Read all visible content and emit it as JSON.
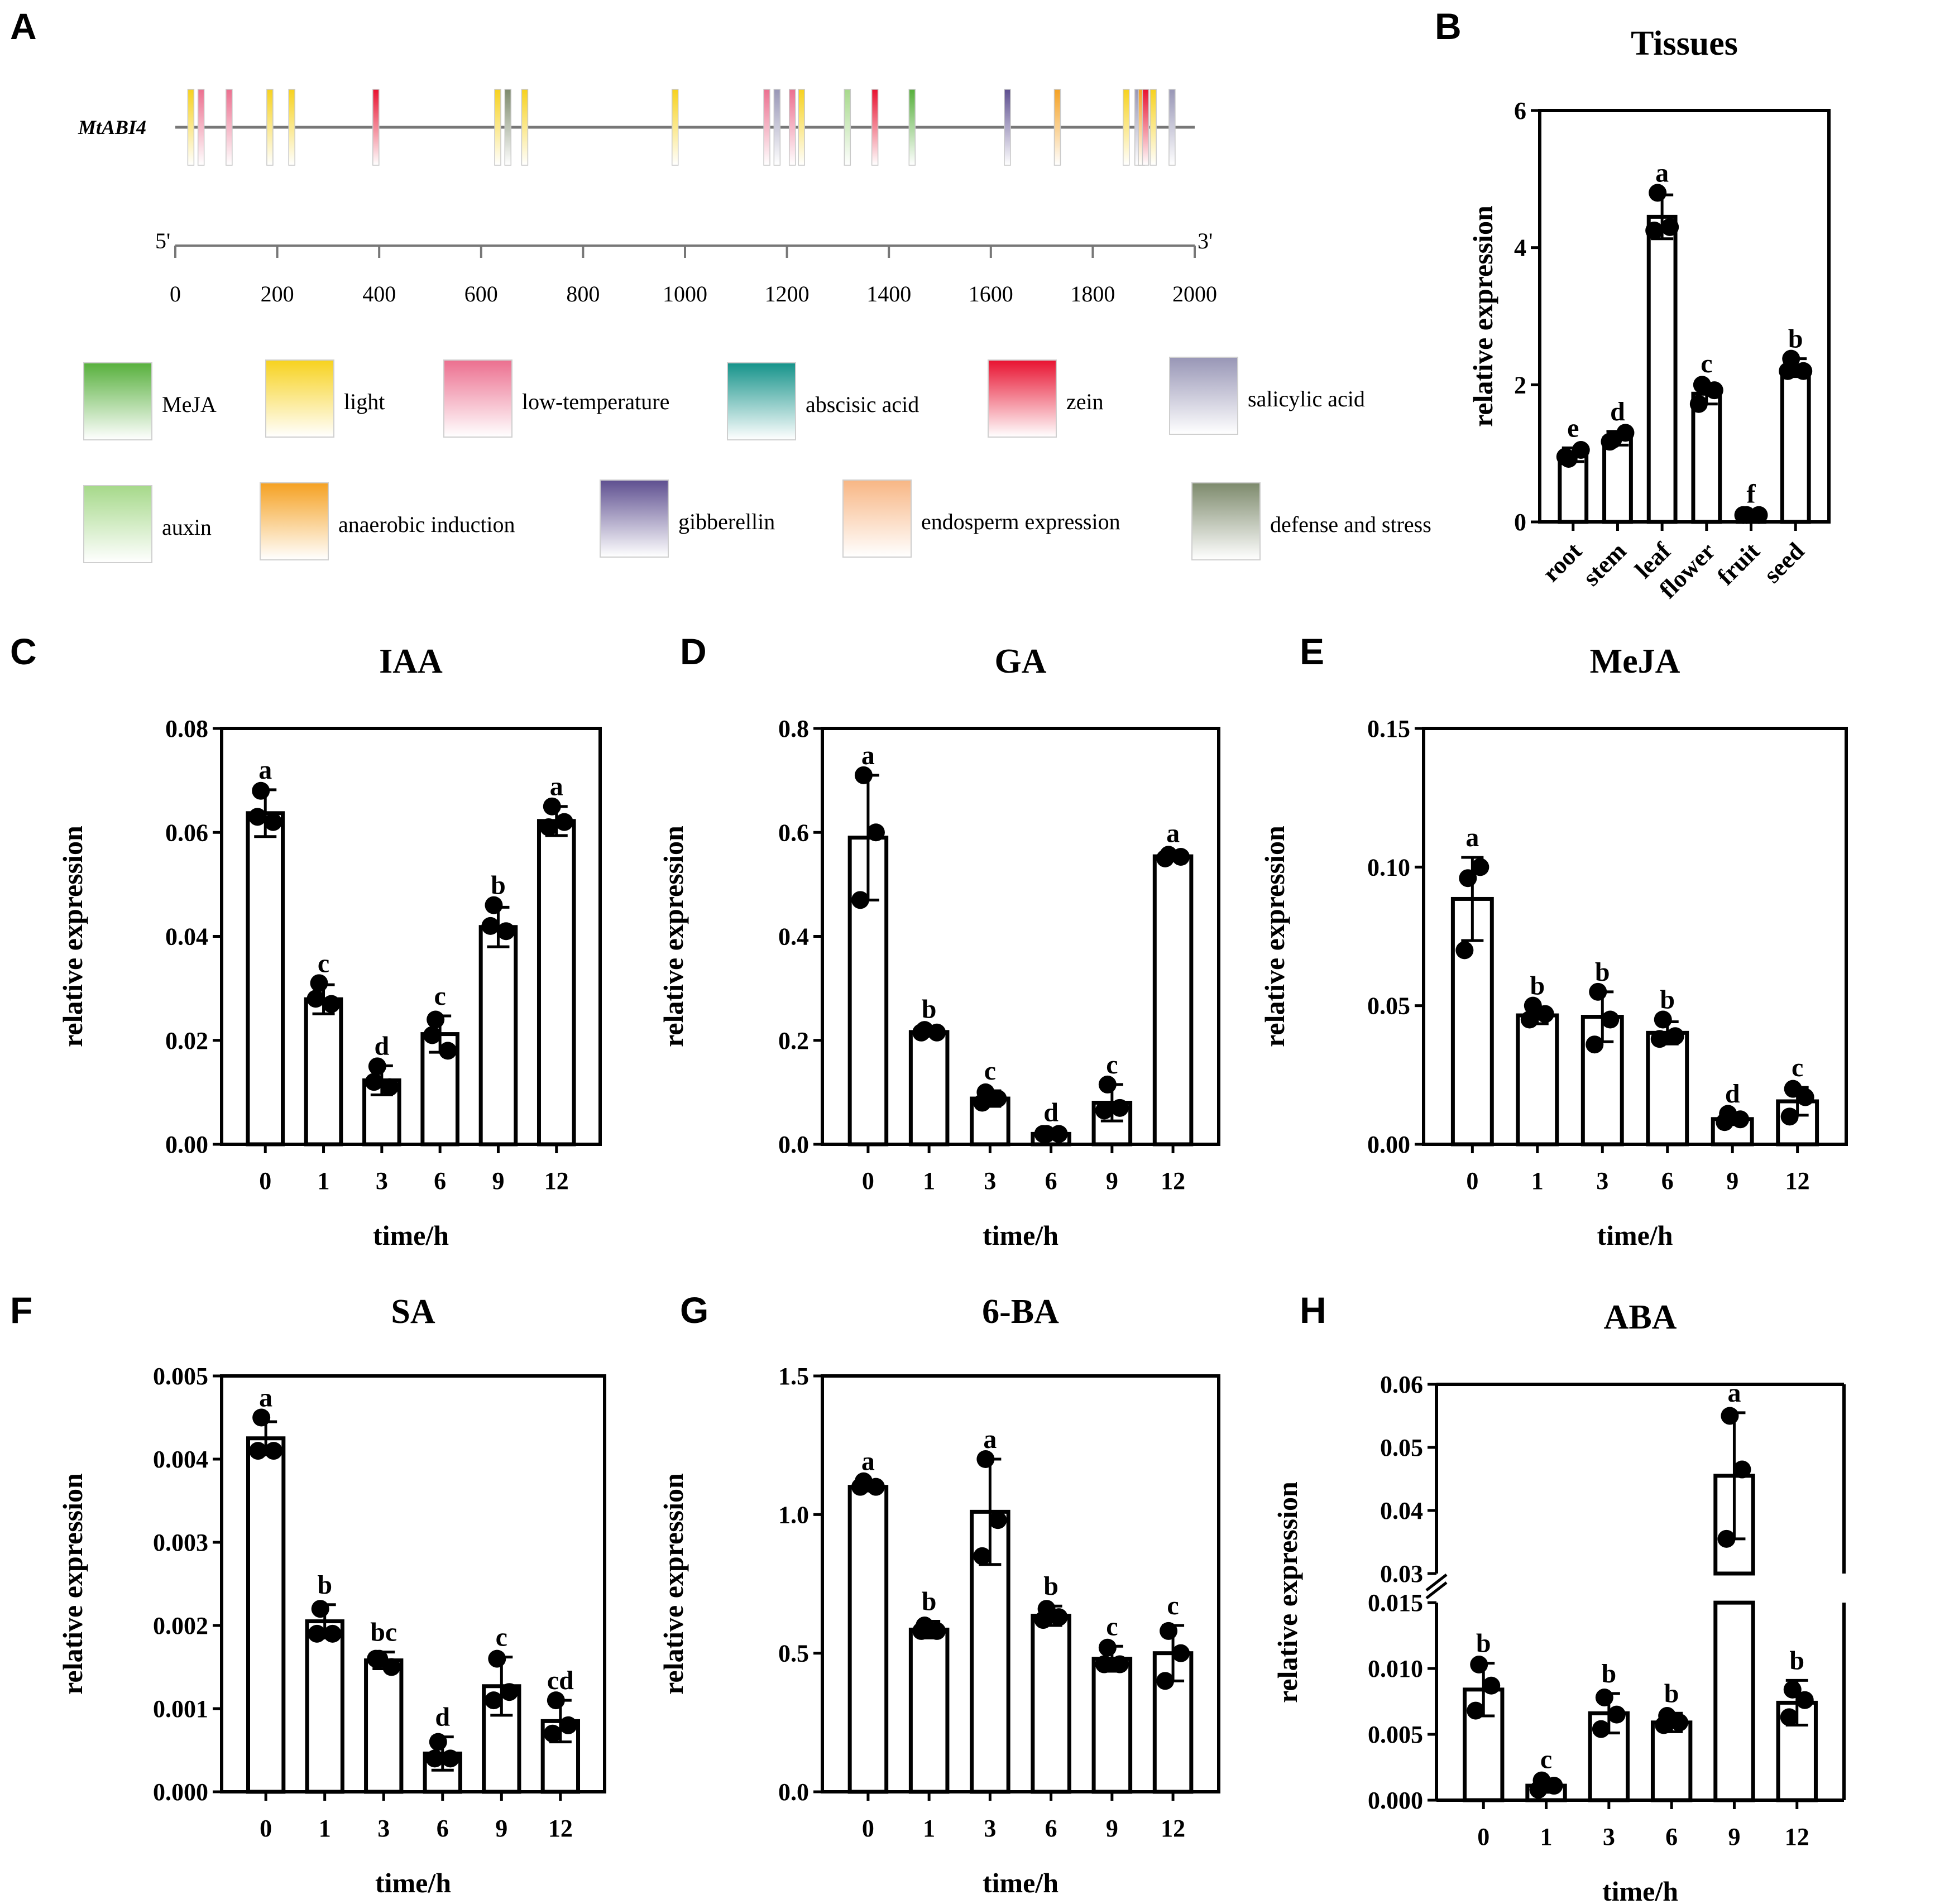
{
  "panels": {
    "A": "A",
    "B": "B",
    "C": "C",
    "D": "D",
    "E": "E",
    "F": "F",
    "G": "G",
    "H": "H"
  },
  "promoter": {
    "gene": "MtABI4",
    "end5": "5'",
    "end3": "3'",
    "scale_ticks": [
      "0",
      "200",
      "400",
      "600",
      "800",
      "1000",
      "1200",
      "1400",
      "1600",
      "1800",
      "2000"
    ],
    "scale_max": 2000,
    "elements": [
      {
        "pos": 30,
        "type": "light"
      },
      {
        "pos": 50,
        "type": "low-temperature"
      },
      {
        "pos": 105,
        "type": "low-temperature"
      },
      {
        "pos": 185,
        "type": "light"
      },
      {
        "pos": 228,
        "type": "light"
      },
      {
        "pos": 393,
        "type": "zein"
      },
      {
        "pos": 632,
        "type": "light"
      },
      {
        "pos": 652,
        "type": "defense and stress"
      },
      {
        "pos": 685,
        "type": "light"
      },
      {
        "pos": 980,
        "type": "light"
      },
      {
        "pos": 1160,
        "type": "low-temperature"
      },
      {
        "pos": 1180,
        "type": "salicylic acid"
      },
      {
        "pos": 1210,
        "type": "low-temperature"
      },
      {
        "pos": 1228,
        "type": "light"
      },
      {
        "pos": 1318,
        "type": "auxin"
      },
      {
        "pos": 1372,
        "type": "zein"
      },
      {
        "pos": 1445,
        "type": "MeJA"
      },
      {
        "pos": 1632,
        "type": "gibberellin"
      },
      {
        "pos": 1730,
        "type": "anaerobic induction"
      },
      {
        "pos": 1865,
        "type": "light"
      },
      {
        "pos": 1888,
        "type": "salicylic acid"
      },
      {
        "pos": 1895,
        "type": "anaerobic induction"
      },
      {
        "pos": 1903,
        "type": "zein"
      },
      {
        "pos": 1918,
        "type": "light"
      },
      {
        "pos": 1955,
        "type": "salicylic acid"
      }
    ],
    "legend": [
      {
        "label": "MeJA",
        "color": "#57b03c"
      },
      {
        "label": "light",
        "color": "#f7d21e"
      },
      {
        "label": "low-temperature",
        "color": "#ec6f8f"
      },
      {
        "label": "abscisic acid",
        "color": "#15938a"
      },
      {
        "label": "zein",
        "color": "#e81230"
      },
      {
        "label": "salicylic acid",
        "color": "#9896b6"
      },
      {
        "label": "auxin",
        "color": "#a6d98a"
      },
      {
        "label": "anaerobic induction",
        "color": "#f5a122"
      },
      {
        "label": "gibberellin",
        "color": "#5e4f90"
      },
      {
        "label": "endosperm expression",
        "color": "#f8b684"
      },
      {
        "label": "defense and stress",
        "color": "#7d8a6c"
      }
    ]
  },
  "chart_data": [
    {
      "panel": "B",
      "type": "bar",
      "title": "Tissues",
      "xlabel": "",
      "ylabel": "relative expression",
      "categories": [
        "root",
        "stem",
        "leaf",
        "flower",
        "fruit",
        "seed"
      ],
      "values": [
        0.98,
        1.22,
        4.45,
        1.87,
        0.1,
        2.25
      ],
      "errors": [
        0.1,
        0.1,
        0.32,
        0.15,
        0.02,
        0.13
      ],
      "points": [
        [
          0.92,
          1.05,
          0.95
        ],
        [
          1.2,
          1.3,
          1.17
        ],
        [
          4.8,
          4.3,
          4.25
        ],
        [
          2.0,
          1.92,
          1.72
        ],
        [
          0.1,
          0.1,
          0.1
        ],
        [
          2.38,
          2.2,
          2.2
        ]
      ],
      "letters": [
        "e",
        "d",
        "a",
        "c",
        "f",
        "b"
      ],
      "yticks": [
        "0",
        "2",
        "4",
        "6"
      ],
      "ylim": [
        0,
        6
      ]
    },
    {
      "panel": "C",
      "type": "bar",
      "title": "IAA",
      "xlabel": "time/h",
      "ylabel": "relative expression",
      "categories": [
        "0",
        "1",
        "3",
        "6",
        "9",
        "12"
      ],
      "values": [
        0.0637,
        0.0279,
        0.0123,
        0.0212,
        0.0418,
        0.0622
      ],
      "errors": [
        0.0045,
        0.0028,
        0.0028,
        0.0035,
        0.0038,
        0.0028
      ],
      "points": [
        [
          0.068,
          0.062,
          0.063
        ],
        [
          0.031,
          0.027,
          0.028
        ],
        [
          0.015,
          0.011,
          0.012
        ],
        [
          0.024,
          0.018,
          0.021
        ],
        [
          0.046,
          0.041,
          0.042
        ],
        [
          0.065,
          0.062,
          0.061
        ]
      ],
      "letters": [
        "a",
        "c",
        "d",
        "c",
        "b",
        "a"
      ],
      "yticks": [
        "0.00",
        "0.02",
        "0.04",
        "0.06",
        "0.08"
      ],
      "ylim": [
        0,
        0.08
      ]
    },
    {
      "panel": "D",
      "type": "bar",
      "title": "GA",
      "xlabel": "time/h",
      "ylabel": "relative expression",
      "categories": [
        "0",
        "1",
        "3",
        "6",
        "9",
        "12"
      ],
      "values": [
        0.59,
        0.216,
        0.088,
        0.02,
        0.08,
        0.554
      ],
      "errors": [
        0.12,
        0.006,
        0.015,
        0.003,
        0.035,
        0.006
      ],
      "points": [
        [
          0.71,
          0.6,
          0.47
        ],
        [
          0.22,
          0.215,
          0.215
        ],
        [
          0.1,
          0.088,
          0.08
        ],
        [
          0.02,
          0.02,
          0.02
        ],
        [
          0.115,
          0.07,
          0.065
        ],
        [
          0.557,
          0.553,
          0.55
        ]
      ],
      "letters": [
        "a",
        "b",
        "c",
        "d",
        "c",
        "a"
      ],
      "yticks": [
        "0.0",
        "0.2",
        "0.4",
        "0.6",
        "0.8"
      ],
      "ylim": [
        0,
        0.8
      ]
    },
    {
      "panel": "E",
      "type": "bar",
      "title": "MeJA",
      "xlabel": "time/h",
      "ylabel": "relative expression",
      "categories": [
        "0",
        "1",
        "3",
        "6",
        "9",
        "12"
      ],
      "values": [
        0.0885,
        0.0465,
        0.046,
        0.0402,
        0.0091,
        0.0155
      ],
      "errors": [
        0.015,
        0.003,
        0.009,
        0.004,
        0.002,
        0.005
      ],
      "points": [
        [
          0.096,
          0.1,
          0.07
        ],
        [
          0.05,
          0.047,
          0.045
        ],
        [
          0.055,
          0.045,
          0.036
        ],
        [
          0.045,
          0.039,
          0.038
        ],
        [
          0.011,
          0.009,
          0.008
        ],
        [
          0.02,
          0.017,
          0.01
        ]
      ],
      "letters": [
        "a",
        "b",
        "b",
        "b",
        "d",
        "c"
      ],
      "yticks": [
        "0.00",
        "0.05",
        "0.10",
        "0.15"
      ],
      "ylim": [
        0,
        0.15
      ]
    },
    {
      "panel": "F",
      "type": "bar",
      "title": "SA",
      "xlabel": "time/h",
      "ylabel": "relative expression",
      "categories": [
        "0",
        "1",
        "3",
        "6",
        "9",
        "12"
      ],
      "values": [
        0.00425,
        0.00205,
        0.00158,
        0.00046,
        0.00127,
        0.00085
      ],
      "errors": [
        0.0002,
        0.0002,
        0.0001,
        0.0002,
        0.00035,
        0.00025
      ],
      "points": [
        [
          0.0045,
          0.0041,
          0.0041
        ],
        [
          0.0022,
          0.0019,
          0.0019
        ],
        [
          0.0016,
          0.0015,
          0.0016
        ],
        [
          0.0006,
          0.0004,
          0.0004
        ],
        [
          0.0016,
          0.0012,
          0.0011
        ],
        [
          0.0011,
          0.0008,
          0.0007
        ]
      ],
      "letters": [
        "a",
        "b",
        "bc",
        "d",
        "c",
        "cd"
      ],
      "yticks": [
        "0.000",
        "0.001",
        "0.002",
        "0.003",
        "0.004",
        "0.005"
      ],
      "ylim": [
        0,
        0.005
      ]
    },
    {
      "panel": "G",
      "type": "bar",
      "title": "6-BA",
      "xlabel": "time/h",
      "ylabel": "relative expression",
      "categories": [
        "0",
        "1",
        "3",
        "6",
        "9",
        "12"
      ],
      "values": [
        1.1,
        0.585,
        1.01,
        0.635,
        0.48,
        0.5
      ],
      "errors": [
        0.015,
        0.03,
        0.19,
        0.035,
        0.045,
        0.1
      ],
      "points": [
        [
          1.12,
          1.1,
          1.1
        ],
        [
          0.6,
          0.58,
          0.58
        ],
        [
          1.2,
          0.98,
          0.85
        ],
        [
          0.66,
          0.63,
          0.62
        ],
        [
          0.52,
          0.46,
          0.46
        ],
        [
          0.58,
          0.5,
          0.4
        ]
      ],
      "letters": [
        "a",
        "b",
        "a",
        "b",
        "c",
        "c"
      ],
      "yticks": [
        "0.0",
        "0.5",
        "1.0",
        "1.5"
      ],
      "ylim": [
        0,
        1.5
      ]
    },
    {
      "panel": "H",
      "type": "bar",
      "title": "ABA",
      "xlabel": "time/h",
      "ylabel": "relative expression",
      "axis_break": [
        0.015,
        0.03
      ],
      "categories": [
        "0",
        "1",
        "3",
        "6",
        "9",
        "12"
      ],
      "values": [
        0.0084,
        0.0011,
        0.0066,
        0.0059,
        0.0455,
        0.0074
      ],
      "errors": [
        0.002,
        0.0005,
        0.0015,
        0.0007,
        0.01,
        0.0017
      ],
      "points": [
        [
          0.0103,
          0.0087,
          0.0068
        ],
        [
          0.0015,
          0.0011,
          0.0008
        ],
        [
          0.0078,
          0.0065,
          0.0054
        ],
        [
          0.0064,
          0.0059,
          0.0057
        ],
        [
          0.055,
          0.0465,
          0.0355
        ],
        [
          0.0084,
          0.0076,
          0.0063
        ]
      ],
      "letters": [
        "b",
        "c",
        "b",
        "b",
        "a",
        "b"
      ],
      "yticks_lower": [
        "0.000",
        "0.005",
        "0.010",
        "0.015"
      ],
      "yticks_upper": [
        "0.03",
        "0.04",
        "0.05",
        "0.06"
      ],
      "ylim_lower": [
        0,
        0.015
      ],
      "ylim_upper": [
        0.03,
        0.06
      ]
    }
  ]
}
